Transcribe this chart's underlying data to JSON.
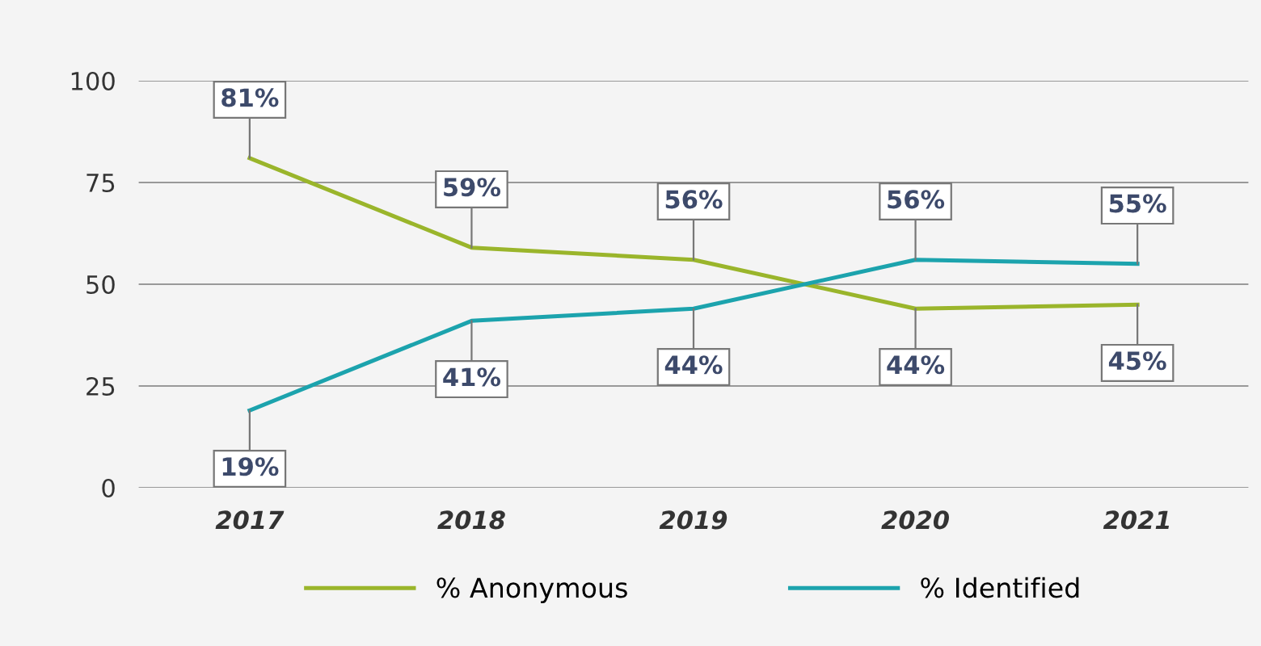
{
  "chart_data": {
    "type": "line",
    "categories": [
      "2017",
      "2018",
      "2019",
      "2020",
      "2021"
    ],
    "series": [
      {
        "name": "% Anonymous",
        "color": "#9ab52b",
        "values": [
          81,
          59,
          56,
          44,
          45
        ],
        "value_labels": [
          "81%",
          "59%",
          "56%",
          "44%",
          "45%"
        ]
      },
      {
        "name": "% Identified",
        "color": "#1ca3ad",
        "values": [
          19,
          41,
          44,
          56,
          55
        ],
        "value_labels": [
          "19%",
          "41%",
          "44%",
          "56%",
          "55%"
        ]
      }
    ],
    "ylim": [
      0,
      100
    ],
    "yticks": [
      0,
      25,
      50,
      75,
      100
    ],
    "grid": "y",
    "legend": "bottom",
    "marker": "none",
    "line_style": "solid"
  }
}
